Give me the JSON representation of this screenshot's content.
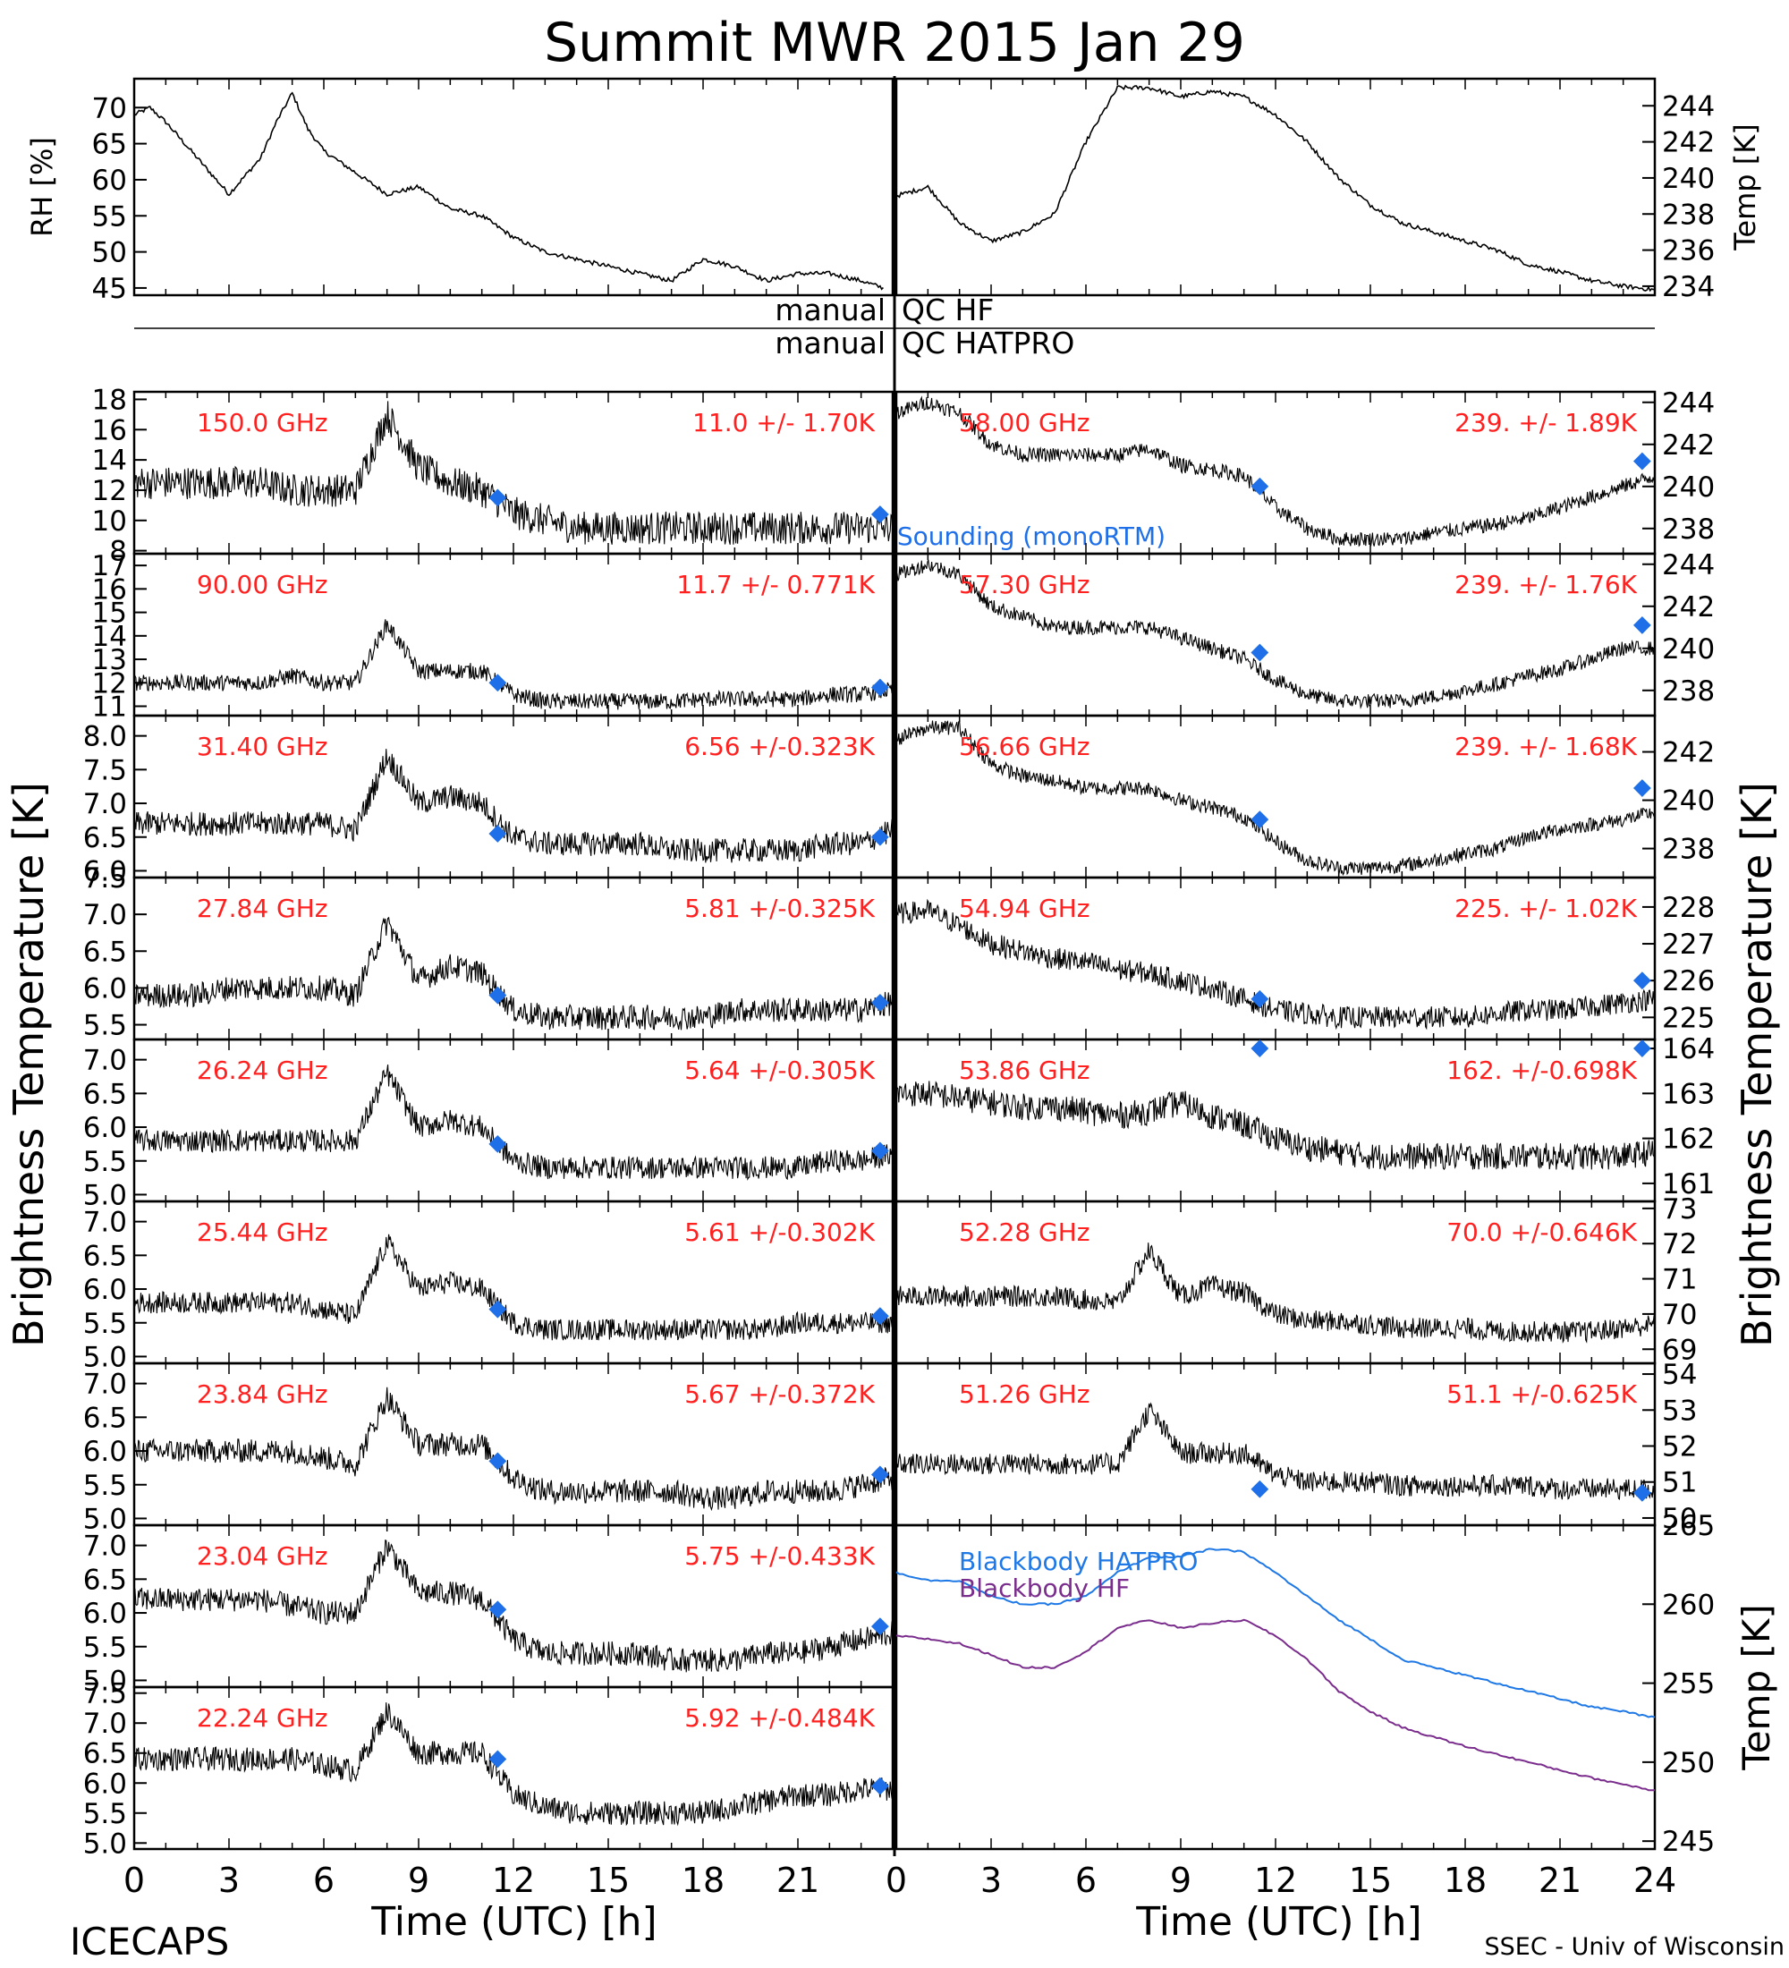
{
  "title": "Summit MWR 2015 Jan 29",
  "footer": {
    "left": "ICECAPS",
    "right": "SSEC - Univ of Wisconsin",
    "xlabel": "Time (UTC) [h]"
  },
  "colors": {
    "axis": "#000000",
    "label_red": "#ff2020",
    "marker_blue": "#1e6fe8",
    "hatpro_line": "#1e78e6",
    "hf_line": "#7a2d8c"
  },
  "qc": {
    "row1_left": "manual",
    "row1_right": "QC HF",
    "row2_left": "manual",
    "row2_right": "QC HATPRO"
  },
  "chart_data": {
    "type": "line",
    "x_range": [
      0,
      24
    ],
    "x_ticks": [
      0,
      3,
      6,
      9,
      12,
      15,
      18,
      21,
      24
    ],
    "left_axis_title": "Brightness Temperature [K]",
    "right_axis_title": "Brightness Temperature [K]",
    "grid": false,
    "top_panels": [
      {
        "ylabel": "RH [%]",
        "yticks": [
          "70",
          "65",
          "60",
          "55",
          "50",
          "45"
        ],
        "ylim": [
          44,
          74
        ],
        "x": [
          0,
          0.5,
          1,
          2,
          3,
          4,
          4.5,
          5,
          5.5,
          6,
          7,
          8,
          9,
          10,
          11,
          12,
          13,
          14,
          15,
          16,
          17,
          18,
          19,
          20,
          21,
          22,
          23,
          23.7
        ],
        "y": [
          69,
          70,
          68,
          63,
          58,
          63,
          68,
          72,
          67,
          64,
          61,
          58,
          59,
          56,
          55,
          52,
          50,
          49,
          48,
          47,
          46,
          49,
          48,
          46,
          47,
          47,
          46,
          45
        ]
      },
      {
        "ylabel": "Temp [K]",
        "yticks": [
          "244",
          "242",
          "240",
          "238",
          "236",
          "234"
        ],
        "ylim": [
          233.5,
          245.5
        ],
        "x": [
          0,
          1,
          2,
          3,
          4,
          5,
          6,
          7,
          8,
          9,
          10,
          11,
          12,
          13,
          14,
          15,
          16,
          17,
          18,
          19,
          20,
          21,
          22,
          23,
          24
        ],
        "y": [
          239,
          239.5,
          237.5,
          236.5,
          237,
          238,
          242,
          245,
          245,
          244.5,
          244.8,
          244.5,
          243.5,
          242,
          240,
          238.5,
          237.5,
          237,
          236.5,
          236,
          235.2,
          234.8,
          234.3,
          234,
          233.8
        ]
      }
    ],
    "channels": [
      {
        "label": "150.0 GHz",
        "stat": "11.0 +/-  1.70K",
        "yticks": [
          "18",
          "16",
          "14",
          "12",
          "10",
          "8"
        ],
        "ylim": [
          7.8,
          18.5
        ],
        "base": [
          12.5,
          12.5,
          12.5,
          12.5,
          12.5,
          12,
          12,
          12,
          17,
          13.5,
          12.5,
          12,
          10.5,
          10,
          9.5,
          9.5,
          9.5,
          9.5,
          9.5,
          9.5,
          9.5,
          9.5,
          9.5,
          9.5,
          9.5
        ],
        "noise": 1.1,
        "sounding": [
          [
            11.5,
            11.5
          ],
          [
            23.6,
            10.4
          ]
        ]
      },
      {
        "label": "90.00 GHz",
        "stat": "11.7 +/- 0.771K",
        "yticks": [
          "17",
          "16",
          "15",
          "14",
          "13",
          "12",
          "11"
        ],
        "ylim": [
          10.6,
          17.5
        ],
        "base": [
          12,
          12,
          12,
          12,
          12,
          12.3,
          12,
          12,
          14.5,
          12.5,
          12.5,
          12.5,
          11.5,
          11.2,
          11.2,
          11.2,
          11.2,
          11.2,
          11.3,
          11.3,
          11.3,
          11.3,
          11.5,
          11.5,
          11.7
        ],
        "noise": 0.35,
        "sounding": [
          [
            11.5,
            12
          ],
          [
            23.6,
            11.8
          ]
        ]
      },
      {
        "label": "31.40 GHz",
        "stat": "6.56 +/-0.323K",
        "yticks": [
          "8.0",
          "7.5",
          "7.0",
          "6.5",
          "6.0"
        ],
        "ylim": [
          5.9,
          8.3
        ],
        "base": [
          6.7,
          6.7,
          6.7,
          6.7,
          6.7,
          6.7,
          6.7,
          6.6,
          7.7,
          7.0,
          7.1,
          7.0,
          6.5,
          6.4,
          6.4,
          6.4,
          6.4,
          6.3,
          6.3,
          6.3,
          6.3,
          6.3,
          6.4,
          6.4,
          6.6
        ],
        "noise": 0.18,
        "sounding": [
          [
            11.5,
            6.55
          ],
          [
            23.6,
            6.5
          ]
        ]
      },
      {
        "label": "27.84 GHz",
        "stat": "5.81 +/-0.325K",
        "yticks": [
          "7.5",
          "7.0",
          "6.5",
          "6.0",
          "5.5"
        ],
        "ylim": [
          5.3,
          7.5
        ],
        "base": [
          5.9,
          5.9,
          5.9,
          6.0,
          6.0,
          6.0,
          6.0,
          5.9,
          6.9,
          6.1,
          6.3,
          6.2,
          5.7,
          5.6,
          5.6,
          5.6,
          5.6,
          5.6,
          5.6,
          5.7,
          5.7,
          5.7,
          5.7,
          5.7,
          5.8
        ],
        "noise": 0.17,
        "sounding": [
          [
            11.5,
            5.9
          ],
          [
            23.6,
            5.8
          ]
        ]
      },
      {
        "label": "26.24 GHz",
        "stat": "5.64 +/-0.305K",
        "yticks": [
          "7.0",
          "6.5",
          "6.0",
          "5.5",
          "5.0"
        ],
        "ylim": [
          4.9,
          7.3
        ],
        "base": [
          5.8,
          5.8,
          5.8,
          5.8,
          5.8,
          5.8,
          5.8,
          5.8,
          6.8,
          6.0,
          6.1,
          6.0,
          5.5,
          5.4,
          5.4,
          5.4,
          5.4,
          5.4,
          5.4,
          5.4,
          5.4,
          5.4,
          5.5,
          5.5,
          5.6
        ],
        "noise": 0.17,
        "sounding": [
          [
            11.5,
            5.75
          ],
          [
            23.6,
            5.65
          ]
        ]
      },
      {
        "label": "25.44 GHz",
        "stat": "5.61 +/-0.302K",
        "yticks": [
          "7.0",
          "6.5",
          "6.0",
          "5.5",
          "5.0"
        ],
        "ylim": [
          4.9,
          7.3
        ],
        "base": [
          5.8,
          5.8,
          5.8,
          5.8,
          5.8,
          5.8,
          5.7,
          5.6,
          6.7,
          6.0,
          6.1,
          6.0,
          5.5,
          5.4,
          5.4,
          5.4,
          5.4,
          5.4,
          5.4,
          5.4,
          5.4,
          5.5,
          5.5,
          5.5,
          5.5
        ],
        "noise": 0.16,
        "sounding": [
          [
            11.5,
            5.7
          ],
          [
            23.6,
            5.6
          ]
        ]
      },
      {
        "label": "23.84 GHz",
        "stat": "5.67 +/-0.372K",
        "yticks": [
          "7.0",
          "6.5",
          "6.0",
          "5.5",
          "5.0"
        ],
        "ylim": [
          4.9,
          7.3
        ],
        "base": [
          6.0,
          6.0,
          6.0,
          6.0,
          6.0,
          6.0,
          5.9,
          5.8,
          6.8,
          6.1,
          6.1,
          6.1,
          5.6,
          5.4,
          5.4,
          5.4,
          5.4,
          5.4,
          5.3,
          5.3,
          5.4,
          5.4,
          5.4,
          5.5,
          5.6
        ],
        "noise": 0.18,
        "sounding": [
          [
            11.5,
            5.85
          ],
          [
            23.6,
            5.65
          ]
        ]
      },
      {
        "label": "23.04 GHz",
        "stat": "5.75 +/-0.433K",
        "yticks": [
          "7.0",
          "6.5",
          "6.0",
          "5.5",
          "5.0"
        ],
        "ylim": [
          4.9,
          7.3
        ],
        "base": [
          6.2,
          6.2,
          6.2,
          6.2,
          6.2,
          6.1,
          6.0,
          6.0,
          7.0,
          6.3,
          6.3,
          6.2,
          5.6,
          5.4,
          5.4,
          5.4,
          5.4,
          5.3,
          5.3,
          5.3,
          5.4,
          5.4,
          5.5,
          5.6,
          5.7
        ],
        "noise": 0.18,
        "sounding": [
          [
            11.5,
            6.05
          ],
          [
            23.6,
            5.8
          ]
        ]
      },
      {
        "label": "22.24 GHz",
        "stat": "5.92 +/-0.484K",
        "yticks": [
          "7.5",
          "7.0",
          "6.5",
          "6.0",
          "5.5",
          "5.0"
        ],
        "ylim": [
          4.9,
          7.6
        ],
        "base": [
          6.4,
          6.4,
          6.4,
          6.4,
          6.4,
          6.4,
          6.3,
          6.2,
          7.2,
          6.5,
          6.5,
          6.5,
          5.8,
          5.6,
          5.5,
          5.5,
          5.5,
          5.5,
          5.5,
          5.6,
          5.7,
          5.8,
          5.8,
          5.9,
          5.9
        ],
        "noise": 0.2,
        "sounding": [
          [
            11.5,
            6.4
          ],
          [
            23.6,
            5.95
          ]
        ]
      },
      {
        "label": "58.00 GHz",
        "stat": "239. +/- 1.89K",
        "yticks": [
          "244",
          "242",
          "240",
          "238"
        ],
        "ylim": [
          236.8,
          244.5
        ],
        "base": [
          243.5,
          244,
          243.5,
          242,
          241.5,
          241.5,
          241.5,
          241.5,
          241.8,
          241,
          240.8,
          240.5,
          239,
          238,
          237.5,
          237.5,
          237.5,
          237.8,
          238,
          238.2,
          238.5,
          239,
          239.5,
          240,
          240.5
        ],
        "noise": 0.35,
        "sounding": [
          [
            11.5,
            240
          ],
          [
            23.6,
            241.2
          ]
        ]
      },
      {
        "label": "57.30 GHz",
        "stat": "239. +/- 1.76K",
        "yticks": [
          "244",
          "242",
          "240",
          "238"
        ],
        "ylim": [
          236.8,
          244.5
        ],
        "base": [
          243.5,
          244,
          243.5,
          242,
          241.5,
          241,
          241,
          241,
          241,
          240.5,
          240,
          239.5,
          238.5,
          237.8,
          237.5,
          237.5,
          237.5,
          237.7,
          238,
          238.3,
          238.7,
          239,
          239.5,
          240,
          240
        ],
        "noise": 0.35,
        "sounding": [
          [
            11.5,
            239.8
          ],
          [
            23.6,
            241.1
          ]
        ]
      },
      {
        "label": "56.66 GHz",
        "stat": "239. +/- 1.68K",
        "yticks": [
          "242",
          "240",
          "238"
        ],
        "ylim": [
          236.8,
          243.5
        ],
        "base": [
          242.5,
          243,
          243,
          241.5,
          241,
          240.8,
          240.5,
          240.5,
          240.5,
          240,
          239.7,
          239.3,
          238.3,
          237.5,
          237.2,
          237.2,
          237.3,
          237.5,
          237.8,
          238,
          238.5,
          238.8,
          239,
          239.2,
          239.5
        ],
        "noise": 0.3,
        "sounding": [
          [
            11.5,
            239.2
          ],
          [
            23.6,
            240.5
          ]
        ]
      },
      {
        "label": "54.94 GHz",
        "stat": "225. +/- 1.02K",
        "yticks": [
          "228",
          "227",
          "226",
          "225"
        ],
        "ylim": [
          224.4,
          228.8
        ],
        "base": [
          227.8,
          227.9,
          227.5,
          227,
          226.8,
          226.6,
          226.5,
          226.3,
          226.2,
          226,
          225.8,
          225.5,
          225.2,
          225.1,
          225,
          225,
          225,
          225,
          225,
          225.1,
          225.2,
          225.2,
          225.3,
          225.4,
          225.5
        ],
        "noise": 0.3,
        "sounding": [
          [
            11.5,
            225.5
          ],
          [
            23.6,
            226
          ]
        ]
      },
      {
        "label": "53.86 GHz",
        "stat": "162. +/-0.698K",
        "yticks": [
          "164",
          "163",
          "162",
          "161"
        ],
        "ylim": [
          160.6,
          164.2
        ],
        "base": [
          163,
          163,
          162.9,
          162.8,
          162.7,
          162.7,
          162.6,
          162.5,
          162.6,
          162.8,
          162.5,
          162.3,
          162,
          161.8,
          161.7,
          161.6,
          161.6,
          161.6,
          161.6,
          161.6,
          161.6,
          161.6,
          161.6,
          161.6,
          161.7
        ],
        "noise": 0.3,
        "sounding": [
          [
            11.5,
            164
          ],
          [
            23.6,
            164
          ]
        ]
      },
      {
        "label": "52.28 GHz",
        "stat": "70.0 +/-0.646K",
        "yticks": [
          "73",
          "72",
          "71",
          "70",
          "69"
        ],
        "ylim": [
          68.6,
          73.2
        ],
        "base": [
          70.5,
          70.5,
          70.5,
          70.5,
          70.5,
          70.5,
          70.4,
          70.3,
          71.8,
          70.5,
          70.8,
          70.6,
          70,
          69.8,
          69.8,
          69.7,
          69.6,
          69.6,
          69.6,
          69.5,
          69.5,
          69.5,
          69.5,
          69.6,
          69.7
        ],
        "noise": 0.3,
        "sounding": []
      },
      {
        "label": "51.26 GHz",
        "stat": "51.1 +/-0.625K",
        "yticks": [
          "54",
          "53",
          "52",
          "51",
          "50"
        ],
        "ylim": [
          49.8,
          54.3
        ],
        "base": [
          51.5,
          51.5,
          51.5,
          51.5,
          51.5,
          51.5,
          51.5,
          51.5,
          53,
          51.8,
          51.8,
          51.8,
          51.2,
          51,
          51,
          51,
          50.9,
          50.9,
          50.9,
          50.9,
          50.9,
          50.8,
          50.8,
          50.8,
          50.8
        ],
        "noise": 0.3,
        "sounding": [
          [
            11.5,
            50.8
          ],
          [
            23.6,
            50.7
          ]
        ]
      }
    ],
    "sounding_legend": "Sounding (monoRTM)",
    "blackbody": {
      "ylabel": "Temp [K]",
      "yticks": [
        "265",
        "260",
        "255",
        "250",
        "245"
      ],
      "ylim": [
        244.5,
        265
      ],
      "x": [
        0,
        1,
        2,
        3,
        4,
        5,
        6,
        7,
        8,
        9,
        10,
        11,
        12,
        13,
        14,
        15,
        16,
        17,
        18,
        19,
        20,
        21,
        22,
        23,
        24
      ],
      "series": [
        {
          "name": "Blackbody HATPRO",
          "values": [
            262,
            261.5,
            261.5,
            260.5,
            260,
            260,
            260.5,
            262,
            263,
            263,
            263.5,
            263.3,
            262,
            260.5,
            259,
            257.8,
            256.5,
            256,
            255.5,
            255,
            254.5,
            254,
            253.5,
            253.2,
            252.8
          ]
        },
        {
          "name": "Blackbody HF",
          "values": [
            258,
            257.8,
            257.5,
            256.8,
            256,
            256,
            257,
            258.5,
            259,
            258.5,
            258.8,
            259,
            258,
            256.5,
            254.5,
            253.2,
            252.2,
            251.6,
            251,
            250.5,
            250,
            249.5,
            249,
            248.6,
            248.2
          ]
        }
      ]
    }
  }
}
